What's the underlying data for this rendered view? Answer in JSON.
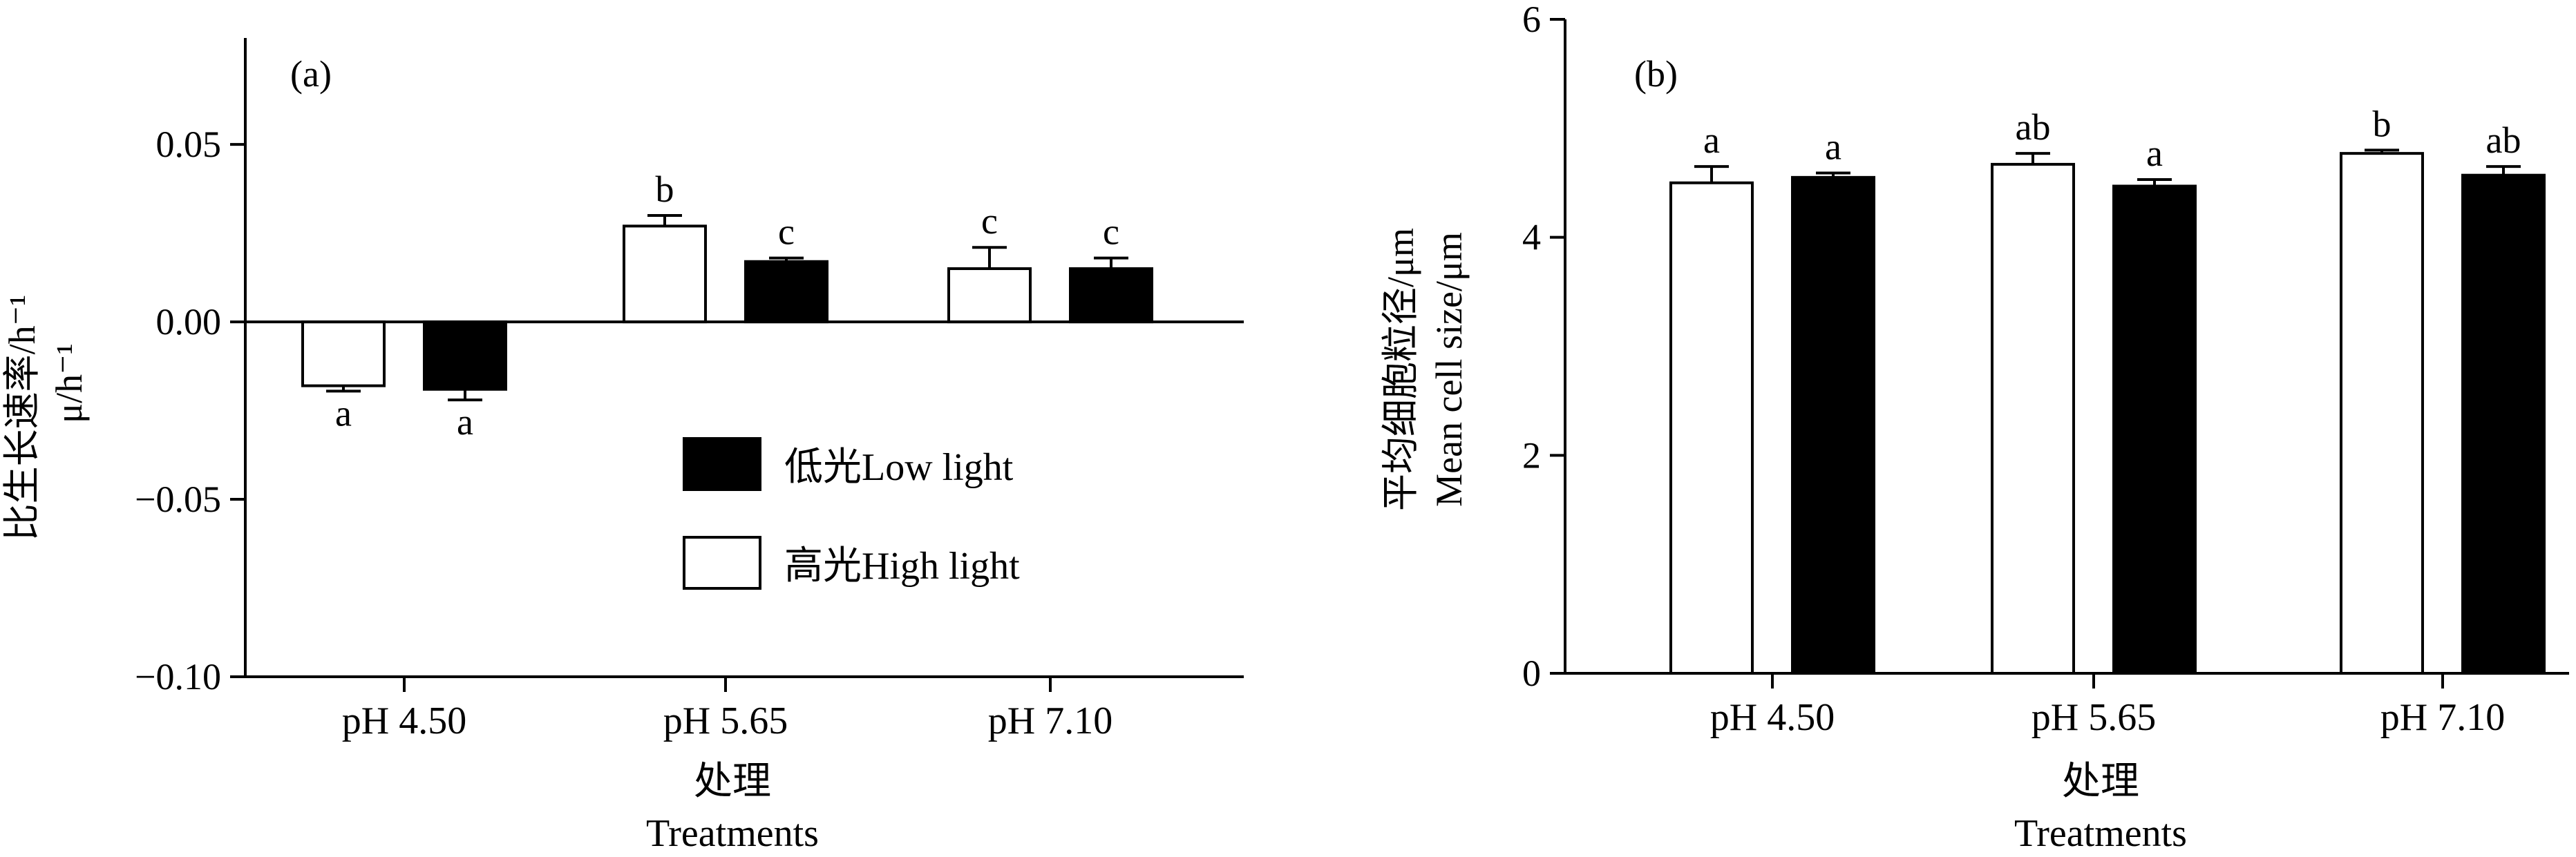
{
  "colors": {
    "high_light_fill": "#ffffff",
    "low_light_fill": "#000000",
    "stroke": "#000000"
  },
  "chart_data": [
    {
      "type": "bar",
      "panel_label": "(a)",
      "ylabel": "比生长速率/h⁻¹",
      "ylabel_secondary": "μ/h⁻¹",
      "xlabel": "处理",
      "xlabel_secondary": "Treatments",
      "categories": [
        "pH 4.50",
        "pH 5.65",
        "pH 7.10"
      ],
      "ylim": [
        -0.1,
        0.08
      ],
      "yticks": [
        -0.1,
        -0.05,
        0.0,
        0.05
      ],
      "ytick_labels": [
        "−0.10",
        "−0.05",
        "0.00",
        "0.05"
      ],
      "legend": {
        "position": "lower-middle",
        "order": [
          "low",
          "high"
        ]
      },
      "series": [
        {
          "key": "high",
          "name": "高光High light",
          "fill": "#ffffff",
          "values": [
            -0.018,
            0.027,
            0.015
          ],
          "errors": [
            0.0015,
            0.003,
            0.006
          ],
          "letters": [
            "a",
            "b",
            "c"
          ]
        },
        {
          "key": "low",
          "name": "低光Low light",
          "fill": "#000000",
          "values": [
            -0.019,
            0.017,
            0.015
          ],
          "errors": [
            0.003,
            0.001,
            0.003
          ],
          "letters": [
            "a",
            "c",
            "c"
          ]
        }
      ]
    },
    {
      "type": "bar",
      "panel_label": "(b)",
      "ylabel": "平均细胞粒径/μm",
      "ylabel_secondary": "Mean cell size/μm",
      "xlabel": "处理",
      "xlabel_secondary": "Treatments",
      "categories": [
        "pH 4.50",
        "pH 5.65",
        "pH 7.10"
      ],
      "ylim": [
        0,
        6
      ],
      "yticks": [
        0,
        2,
        4,
        6
      ],
      "ytick_labels": [
        "0",
        "2",
        "4",
        "6"
      ],
      "series": [
        {
          "key": "high",
          "name": "高光High light",
          "fill": "#ffffff",
          "values": [
            4.5,
            4.67,
            4.77
          ],
          "errors": [
            0.15,
            0.1,
            0.03
          ],
          "letters": [
            "a",
            "ab",
            "b"
          ]
        },
        {
          "key": "low",
          "name": "低光Low light",
          "fill": "#000000",
          "values": [
            4.55,
            4.47,
            4.57
          ],
          "errors": [
            0.04,
            0.06,
            0.08
          ],
          "letters": [
            "a",
            "a",
            "ab"
          ]
        }
      ]
    }
  ]
}
